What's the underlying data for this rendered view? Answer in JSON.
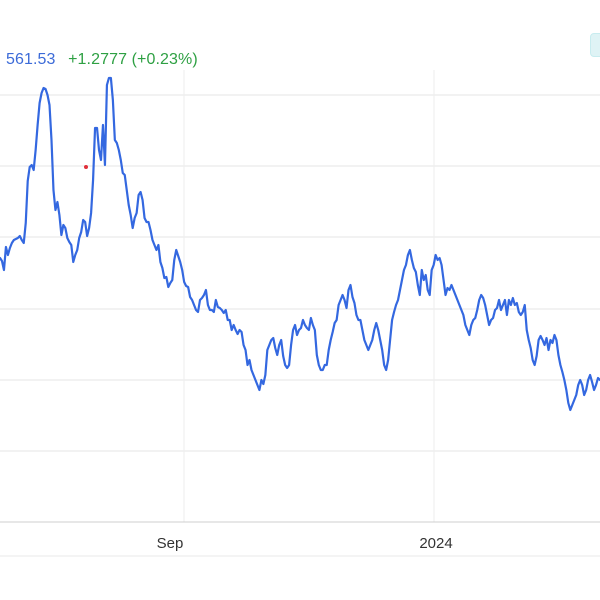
{
  "header": {
    "price": "561.53",
    "change": "+1.2777 (+0.23%)"
  },
  "colors": {
    "line": "#3468e0",
    "grid": "#e6e6e6",
    "price": "#3c6bd8",
    "change": "#2ea043",
    "marker": "#e0303a"
  },
  "chart_data": {
    "type": "line",
    "title": "",
    "xlabel": "",
    "ylabel": "",
    "grid": true,
    "x_ticks": [
      "Sep",
      "2024"
    ],
    "series": [
      {
        "values": [
          258,
          261,
          270,
          247,
          255,
          248,
          243,
          240,
          239,
          238,
          236,
          240,
          243,
          223,
          181,
          167,
          165,
          170,
          150,
          125,
          103,
          93,
          88,
          89,
          95,
          105,
          140,
          190,
          210,
          202,
          215,
          235,
          225,
          228,
          238,
          242,
          245,
          262,
          255,
          250,
          238,
          232,
          220,
          222,
          236,
          228,
          213,
          180,
          128,
          128,
          150,
          160,
          125,
          165,
          85,
          78,
          78,
          100,
          140,
          143,
          150,
          160,
          173,
          175,
          190,
          205,
          215,
          228,
          218,
          213,
          195,
          192,
          200,
          218,
          222,
          222,
          230,
          240,
          245,
          250,
          245,
          262,
          268,
          278,
          277,
          287,
          283,
          280,
          260,
          250,
          256,
          262,
          270,
          282,
          286,
          287,
          297,
          300,
          305,
          310,
          312,
          300,
          298,
          295,
          290,
          305,
          310,
          310,
          312,
          300,
          307,
          308,
          310,
          313,
          310,
          320,
          320,
          330,
          325,
          330,
          334,
          330,
          332,
          345,
          350,
          365,
          360,
          370,
          375,
          380,
          385,
          390,
          380,
          384,
          375,
          350,
          345,
          340,
          338,
          348,
          355,
          345,
          340,
          356,
          365,
          368,
          365,
          345,
          330,
          325,
          335,
          330,
          328,
          320,
          325,
          328,
          330,
          318,
          325,
          330,
          355,
          365,
          370,
          370,
          365,
          365,
          350,
          340,
          332,
          323,
          320,
          305,
          300,
          295,
          300,
          308,
          290,
          285,
          297,
          303,
          315,
          320,
          320,
          330,
          340,
          345,
          350,
          345,
          340,
          330,
          323,
          330,
          340,
          350,
          365,
          370,
          360,
          340,
          320,
          312,
          305,
          300,
          290,
          280,
          270,
          265,
          255,
          250,
          260,
          268,
          272,
          285,
          295,
          270,
          280,
          275,
          290,
          295,
          270,
          265,
          255,
          260,
          258,
          265,
          280,
          295,
          288,
          290,
          285,
          290,
          295,
          300,
          305,
          310,
          315,
          325,
          330,
          335,
          325,
          320,
          318,
          310,
          300,
          295,
          298,
          305,
          315,
          325,
          320,
          318,
          310,
          308,
          300,
          310,
          305,
          300,
          315,
          300,
          305,
          298,
          305,
          303,
          312,
          315,
          312,
          305,
          330,
          340,
          348,
          360,
          365,
          356,
          340,
          336,
          340,
          345,
          338,
          350,
          340,
          343,
          335,
          340,
          355,
          365,
          372,
          380,
          390,
          403,
          410,
          405,
          400,
          395,
          385,
          380,
          385,
          395,
          390,
          380,
          375,
          382,
          390,
          385,
          378,
          380
        ]
      }
    ]
  }
}
